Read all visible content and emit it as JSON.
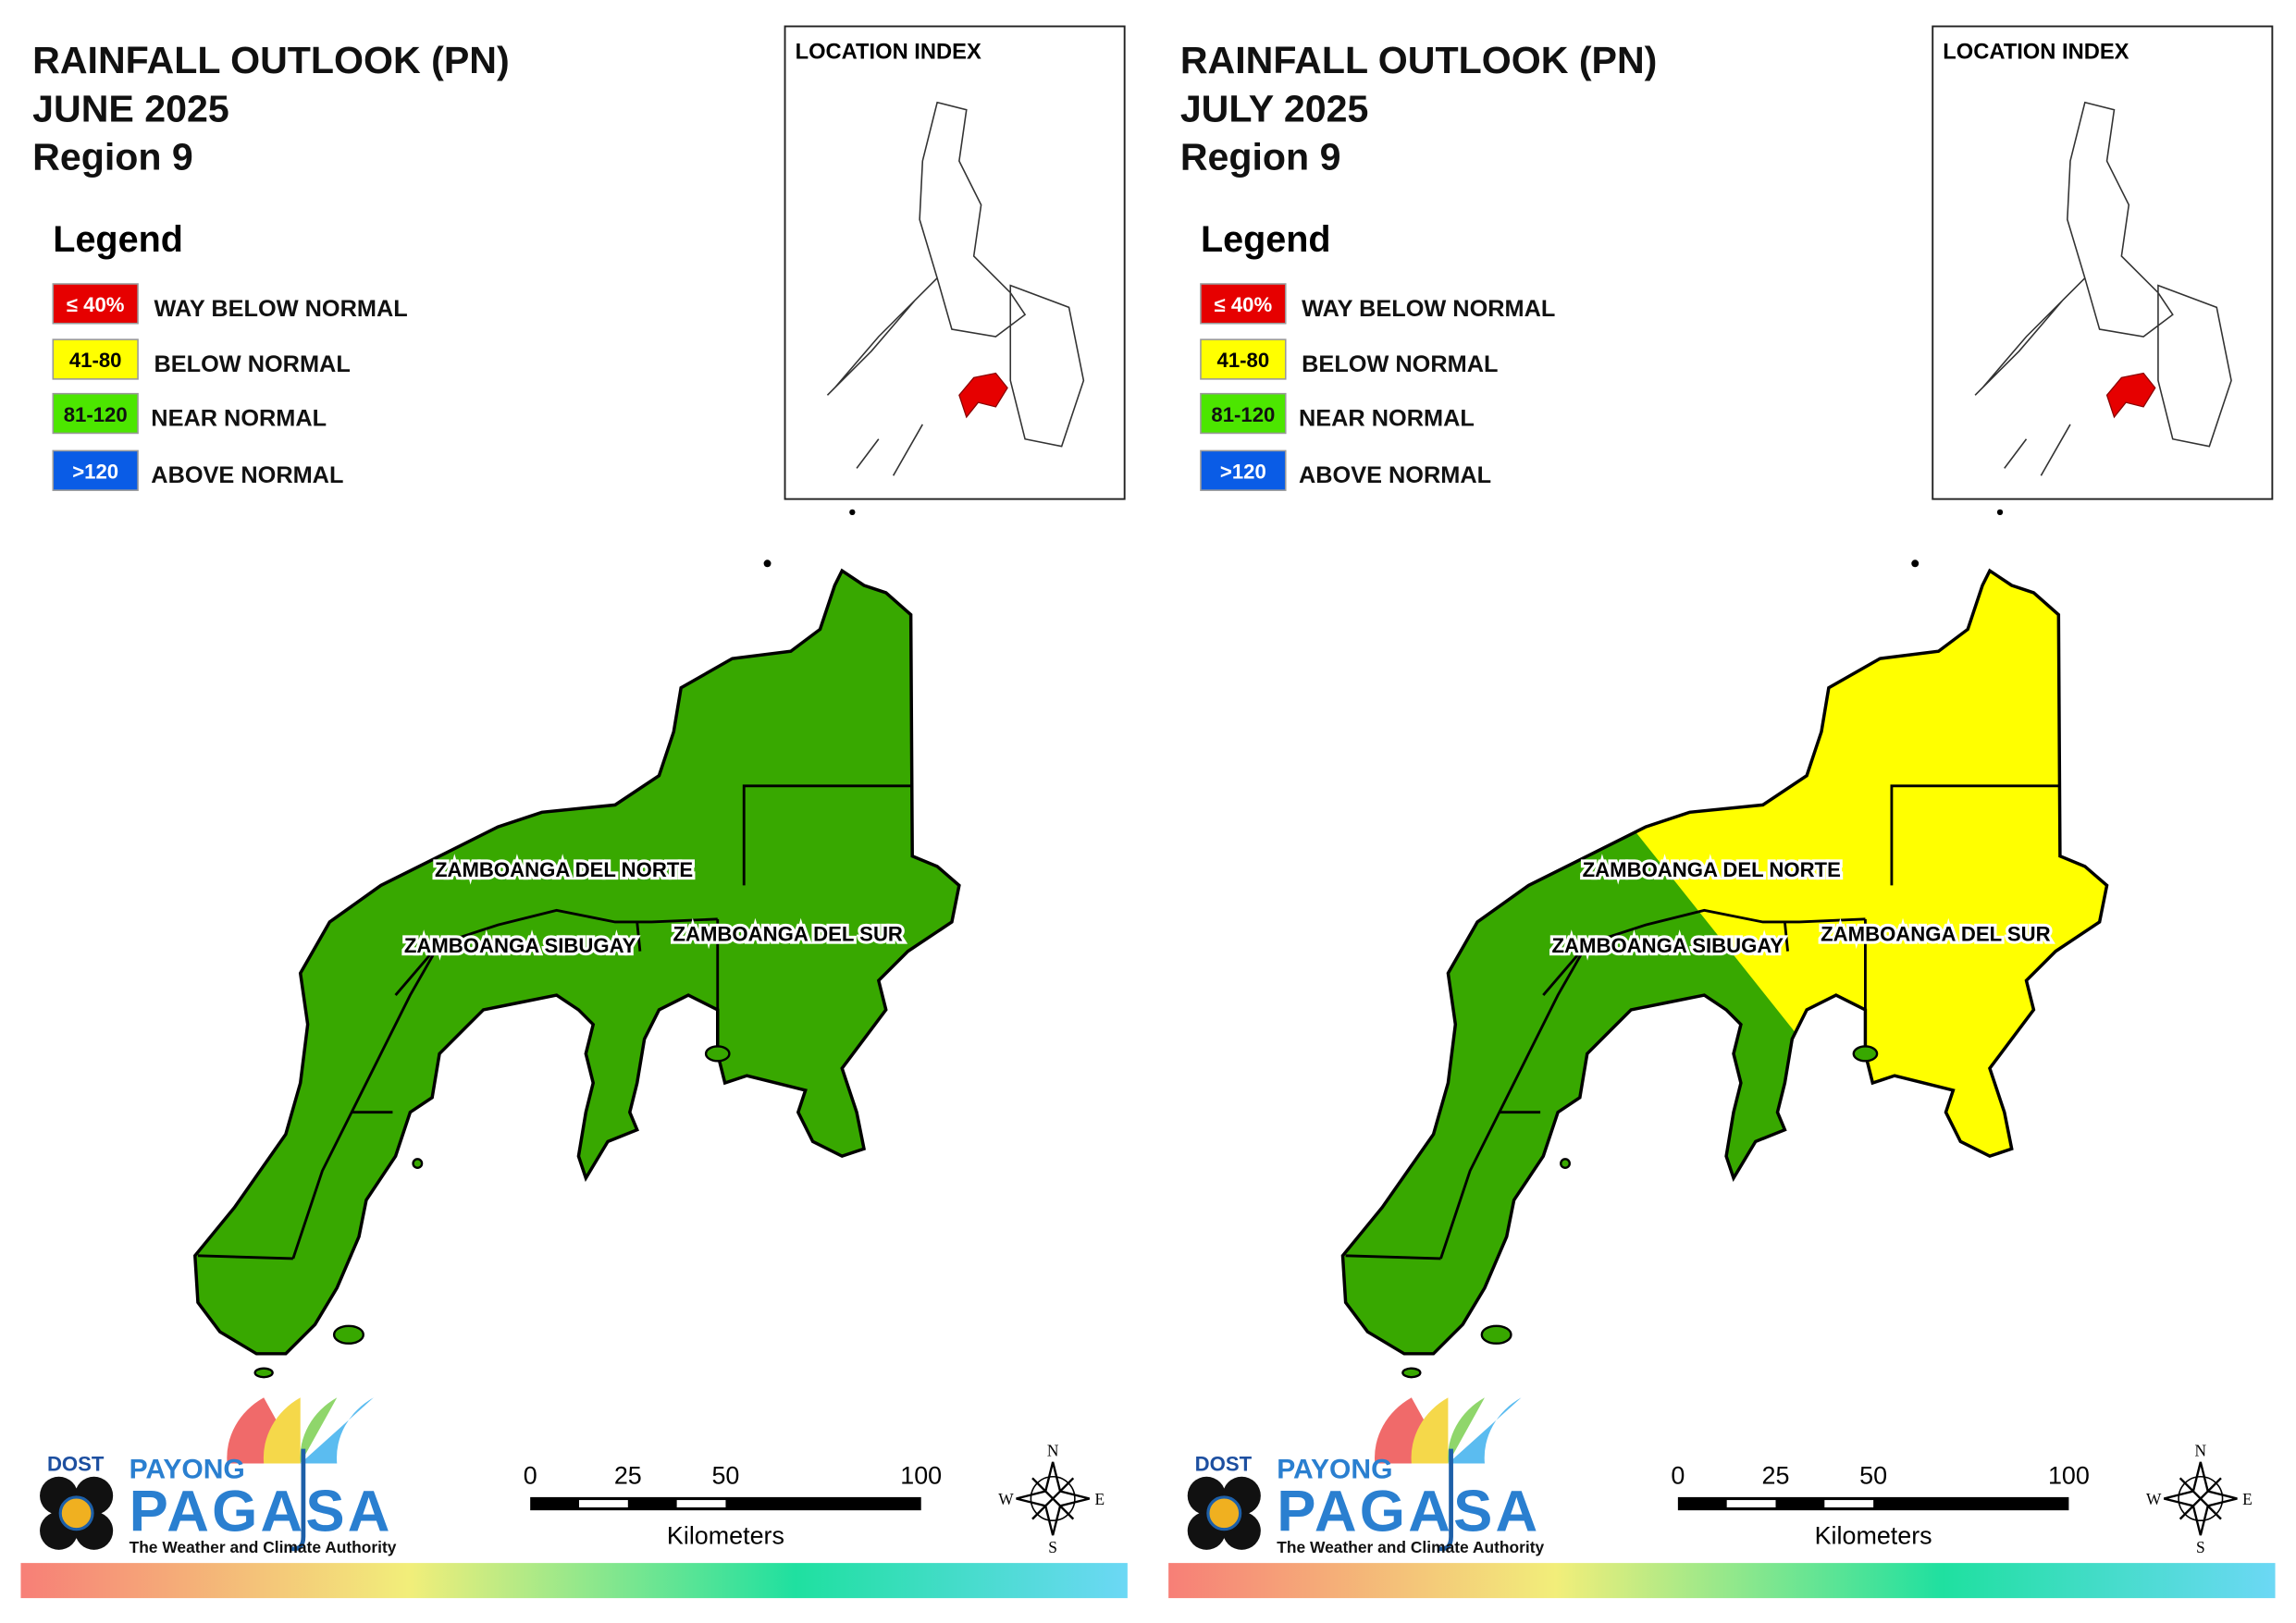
{
  "panels": [
    {
      "title_lines": [
        "RAINFALL OUTLOOK (PN)",
        "JUNE 2025",
        "Region 9"
      ],
      "legend": {
        "title": "Legend",
        "items": [
          {
            "range": "≤ 40%",
            "label": "WAY BELOW NORMAL",
            "color": "#e60000"
          },
          {
            "range": "41-80",
            "label": "BELOW NORMAL",
            "color": "#ffff00"
          },
          {
            "range": "81-120",
            "label": "NEAR NORMAL",
            "color": "#4ce600"
          },
          {
            "range": ">120",
            "label": "ABOVE NORMAL",
            "color": "#0a5ce6"
          }
        ]
      },
      "inset_title": "LOCATION INDEX",
      "provinces": [
        "ZAMBOANGA DEL NORTE",
        "ZAMBOANGA SIBUGAY",
        "ZAMBOANGA DEL SUR"
      ],
      "fills": [
        "#38a800",
        "#38a800"
      ],
      "scale_bar": {
        "ticks": [
          0,
          25,
          50,
          100
        ],
        "unit": "Kilometers"
      },
      "compass": [
        "N",
        "E",
        "S",
        "W"
      ],
      "logo": {
        "agency": "DOST",
        "brand_top": "PAYONG",
        "brand": "PAGASA",
        "tagline": "The Weather and Climate Authority"
      }
    },
    {
      "title_lines": [
        "RAINFALL OUTLOOK (PN)",
        "JULY 2025",
        "Region 9"
      ],
      "legend": {
        "title": "Legend",
        "items": [
          {
            "range": "≤ 40%",
            "label": "WAY BELOW NORMAL",
            "color": "#e60000"
          },
          {
            "range": "41-80",
            "label": "BELOW NORMAL",
            "color": "#ffff00"
          },
          {
            "range": "81-120",
            "label": "NEAR NORMAL",
            "color": "#4ce600"
          },
          {
            "range": ">120",
            "label": "ABOVE NORMAL",
            "color": "#0a5ce6"
          }
        ]
      },
      "inset_title": "LOCATION INDEX",
      "provinces": [
        "ZAMBOANGA DEL NORTE",
        "ZAMBOANGA SIBUGAY",
        "ZAMBOANGA DEL SUR"
      ],
      "fills": [
        "#38a800",
        "#ffff00"
      ],
      "scale_bar": {
        "ticks": [
          0,
          25,
          50,
          100
        ],
        "unit": "Kilometers"
      },
      "compass": [
        "N",
        "E",
        "S",
        "W"
      ],
      "logo": {
        "agency": "DOST",
        "brand_top": "PAYONG",
        "brand": "PAGASA",
        "tagline": "The Weather and Climate Authority"
      }
    }
  ]
}
